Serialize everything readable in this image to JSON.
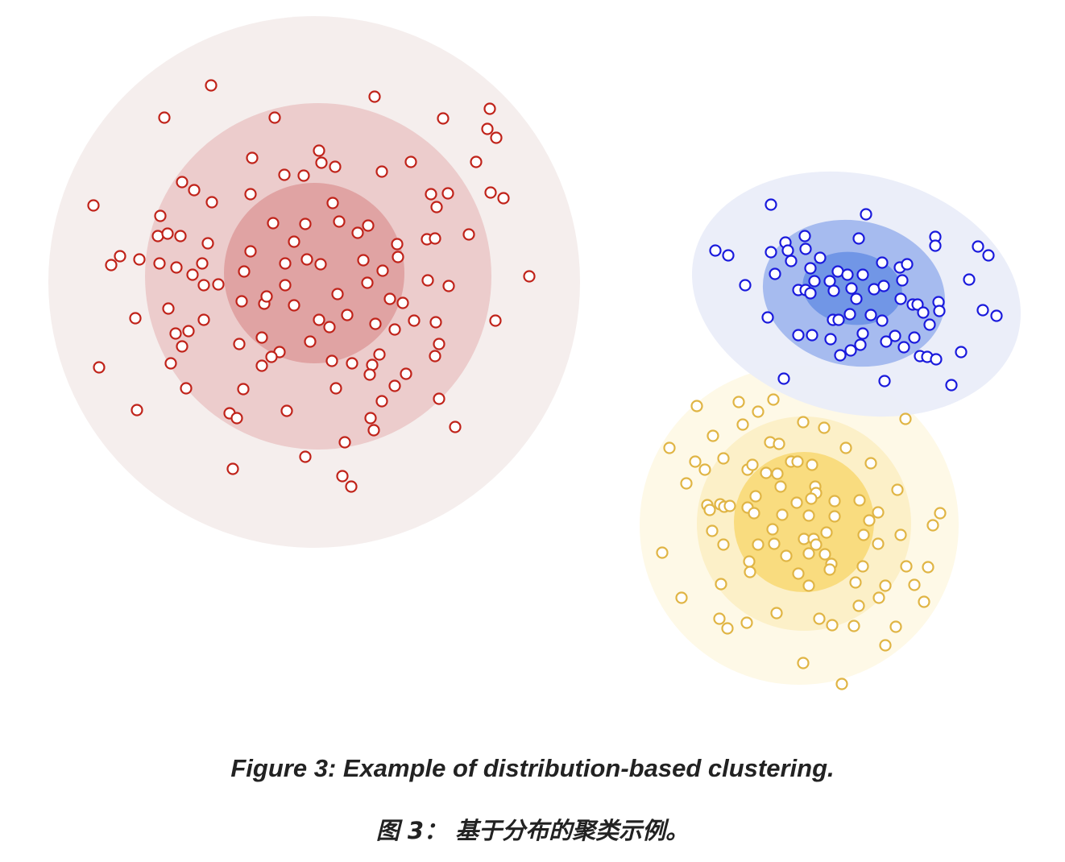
{
  "figure": {
    "caption_en": "Figure 3: Example of distribution-based clustering.",
    "caption_zh": "图 3： 基于分布的聚类示例。"
  },
  "clusters": [
    {
      "name": "red",
      "point_color": "#c0231a",
      "band_colors": [
        "#f5eeed",
        "#eccccc",
        "#e0a3a3"
      ],
      "points": [
        [
          262,
          106
        ],
        [
          465,
          120
        ],
        [
          608,
          135
        ],
        [
          204,
          146
        ],
        [
          341,
          146
        ],
        [
          550,
          147
        ],
        [
          605,
          160
        ],
        [
          616,
          171
        ],
        [
          396,
          187
        ],
        [
          313,
          196
        ],
        [
          399,
          202
        ],
        [
          416,
          207
        ],
        [
          510,
          201
        ],
        [
          591,
          201
        ],
        [
          353,
          217
        ],
        [
          377,
          218
        ],
        [
          474,
          213
        ],
        [
          226,
          226
        ],
        [
          241,
          236
        ],
        [
          263,
          251
        ],
        [
          311,
          241
        ],
        [
          535,
          241
        ],
        [
          556,
          240
        ],
        [
          609,
          239
        ],
        [
          625,
          246
        ],
        [
          116,
          255
        ],
        [
          413,
          252
        ],
        [
          542,
          257
        ],
        [
          199,
          268
        ],
        [
          339,
          277
        ],
        [
          379,
          278
        ],
        [
          421,
          275
        ],
        [
          457,
          280
        ],
        [
          196,
          293
        ],
        [
          208,
          290
        ],
        [
          224,
          293
        ],
        [
          444,
          289
        ],
        [
          582,
          291
        ],
        [
          530,
          297
        ],
        [
          540,
          296
        ],
        [
          258,
          302
        ],
        [
          365,
          300
        ],
        [
          493,
          303
        ],
        [
          311,
          312
        ],
        [
          149,
          318
        ],
        [
          138,
          329
        ],
        [
          173,
          322
        ],
        [
          198,
          327
        ],
        [
          219,
          332
        ],
        [
          251,
          327
        ],
        [
          381,
          322
        ],
        [
          354,
          327
        ],
        [
          398,
          328
        ],
        [
          451,
          323
        ],
        [
          494,
          319
        ],
        [
          239,
          341
        ],
        [
          303,
          337
        ],
        [
          475,
          336
        ],
        [
          657,
          343
        ],
        [
          253,
          354
        ],
        [
          271,
          353
        ],
        [
          354,
          354
        ],
        [
          456,
          351
        ],
        [
          531,
          348
        ],
        [
          557,
          355
        ],
        [
          300,
          374
        ],
        [
          328,
          377
        ],
        [
          331,
          368
        ],
        [
          365,
          379
        ],
        [
          419,
          365
        ],
        [
          484,
          371
        ],
        [
          500,
          376
        ],
        [
          209,
          383
        ],
        [
          168,
          395
        ],
        [
          253,
          397
        ],
        [
          396,
          397
        ],
        [
          409,
          406
        ],
        [
          431,
          391
        ],
        [
          466,
          402
        ],
        [
          490,
          409
        ],
        [
          514,
          398
        ],
        [
          541,
          400
        ],
        [
          615,
          398
        ],
        [
          218,
          414
        ],
        [
          234,
          411
        ],
        [
          226,
          430
        ],
        [
          325,
          419
        ],
        [
          385,
          424
        ],
        [
          545,
          427
        ],
        [
          297,
          427
        ],
        [
          347,
          437
        ],
        [
          337,
          443
        ],
        [
          471,
          440
        ],
        [
          540,
          442
        ],
        [
          123,
          456
        ],
        [
          212,
          451
        ],
        [
          325,
          454
        ],
        [
          412,
          448
        ],
        [
          437,
          451
        ],
        [
          462,
          453
        ],
        [
          459,
          465
        ],
        [
          504,
          464
        ],
        [
          417,
          482
        ],
        [
          231,
          482
        ],
        [
          302,
          483
        ],
        [
          490,
          479
        ],
        [
          474,
          498
        ],
        [
          545,
          495
        ],
        [
          170,
          509
        ],
        [
          285,
          513
        ],
        [
          294,
          519
        ],
        [
          356,
          510
        ],
        [
          460,
          519
        ],
        [
          464,
          534
        ],
        [
          565,
          530
        ],
        [
          428,
          549
        ],
        [
          379,
          567
        ],
        [
          289,
          582
        ],
        [
          425,
          591
        ],
        [
          436,
          604
        ]
      ]
    },
    {
      "name": "blue",
      "point_color": "#1a1adc",
      "band_colors": [
        "#eaedf9",
        "#a6bbef",
        "#7196e6"
      ],
      "points": [
        [
          957,
          254
        ],
        [
          1075,
          266
        ],
        [
          999,
          293
        ],
        [
          1066,
          296
        ],
        [
          1161,
          294
        ],
        [
          975,
          301
        ],
        [
          1161,
          305
        ],
        [
          1214,
          306
        ],
        [
          888,
          311
        ],
        [
          904,
          317
        ],
        [
          957,
          313
        ],
        [
          978,
          311
        ],
        [
          1000,
          309
        ],
        [
          1018,
          320
        ],
        [
          1227,
          317
        ],
        [
          982,
          324
        ],
        [
          1095,
          326
        ],
        [
          1117,
          332
        ],
        [
          1126,
          328
        ],
        [
          1006,
          333
        ],
        [
          1040,
          337
        ],
        [
          962,
          340
        ],
        [
          1052,
          341
        ],
        [
          1071,
          341
        ],
        [
          1030,
          349
        ],
        [
          1011,
          349
        ],
        [
          925,
          354
        ],
        [
          991,
          360
        ],
        [
          1000,
          360
        ],
        [
          1035,
          361
        ],
        [
          1006,
          364
        ],
        [
          1057,
          358
        ],
        [
          1085,
          359
        ],
        [
          1097,
          355
        ],
        [
          1120,
          348
        ],
        [
          1203,
          347
        ],
        [
          1063,
          371
        ],
        [
          1118,
          371
        ],
        [
          1133,
          378
        ],
        [
          1139,
          378
        ],
        [
          1146,
          388
        ],
        [
          1165,
          375
        ],
        [
          1166,
          386
        ],
        [
          1220,
          385
        ],
        [
          953,
          394
        ],
        [
          1034,
          397
        ],
        [
          1041,
          397
        ],
        [
          1055,
          390
        ],
        [
          1081,
          391
        ],
        [
          1095,
          398
        ],
        [
          1154,
          403
        ],
        [
          1237,
          392
        ],
        [
          991,
          416
        ],
        [
          1008,
          416
        ],
        [
          1031,
          421
        ],
        [
          1071,
          414
        ],
        [
          1068,
          428
        ],
        [
          1111,
          417
        ],
        [
          1135,
          419
        ],
        [
          1056,
          435
        ],
        [
          1043,
          441
        ],
        [
          1100,
          424
        ],
        [
          1122,
          431
        ],
        [
          1142,
          442
        ],
        [
          1151,
          443
        ],
        [
          1162,
          446
        ],
        [
          1193,
          437
        ],
        [
          973,
          470
        ],
        [
          1098,
          473
        ],
        [
          1181,
          478
        ]
      ]
    },
    {
      "name": "yellow",
      "point_color": "#e0b545",
      "band_colors": [
        "#fef9e7",
        "#fcf0c8",
        "#f9dc7f"
      ],
      "points": [
        [
          865,
          504
        ],
        [
          917,
          499
        ],
        [
          960,
          496
        ],
        [
          941,
          511
        ],
        [
          922,
          527
        ],
        [
          1124,
          520
        ],
        [
          997,
          524
        ],
        [
          1023,
          531
        ],
        [
          885,
          541
        ],
        [
          831,
          556
        ],
        [
          956,
          549
        ],
        [
          967,
          551
        ],
        [
          1050,
          556
        ],
        [
          863,
          573
        ],
        [
          875,
          583
        ],
        [
          898,
          569
        ],
        [
          928,
          583
        ],
        [
          934,
          577
        ],
        [
          951,
          587
        ],
        [
          965,
          588
        ],
        [
          982,
          573
        ],
        [
          990,
          573
        ],
        [
          1008,
          577
        ],
        [
          1081,
          575
        ],
        [
          852,
          600
        ],
        [
          969,
          604
        ],
        [
          1012,
          604
        ],
        [
          1114,
          608
        ],
        [
          1013,
          612
        ],
        [
          938,
          616
        ],
        [
          1036,
          622
        ],
        [
          1067,
          621
        ],
        [
          878,
          627
        ],
        [
          881,
          633
        ],
        [
          894,
          626
        ],
        [
          899,
          629
        ],
        [
          906,
          628
        ],
        [
          928,
          630
        ],
        [
          936,
          637
        ],
        [
          989,
          624
        ],
        [
          1007,
          619
        ],
        [
          971,
          639
        ],
        [
          1004,
          640
        ],
        [
          1036,
          641
        ],
        [
          1090,
          636
        ],
        [
          1167,
          637
        ],
        [
          1079,
          646
        ],
        [
          884,
          659
        ],
        [
          959,
          657
        ],
        [
          1026,
          661
        ],
        [
          1072,
          664
        ],
        [
          1118,
          664
        ],
        [
          1158,
          652
        ],
        [
          898,
          676
        ],
        [
          941,
          676
        ],
        [
          961,
          675
        ],
        [
          998,
          669
        ],
        [
          1010,
          669
        ],
        [
          1013,
          676
        ],
        [
          1004,
          687
        ],
        [
          1024,
          688
        ],
        [
          976,
          690
        ],
        [
          822,
          686
        ],
        [
          930,
          697
        ],
        [
          1032,
          700
        ],
        [
          931,
          710
        ],
        [
          1071,
          703
        ],
        [
          1125,
          703
        ],
        [
          1152,
          704
        ],
        [
          1090,
          675
        ],
        [
          991,
          712
        ],
        [
          1030,
          707
        ],
        [
          1004,
          727
        ],
        [
          1062,
          723
        ],
        [
          1099,
          727
        ],
        [
          1135,
          726
        ],
        [
          895,
          725
        ],
        [
          1091,
          742
        ],
        [
          1147,
          747
        ],
        [
          846,
          742
        ],
        [
          1066,
          752
        ],
        [
          964,
          761
        ],
        [
          893,
          768
        ],
        [
          903,
          780
        ],
        [
          927,
          773
        ],
        [
          1017,
          768
        ],
        [
          1033,
          776
        ],
        [
          1060,
          777
        ],
        [
          1112,
          778
        ],
        [
          1099,
          801
        ],
        [
          997,
          823
        ],
        [
          1045,
          849
        ]
      ]
    }
  ]
}
